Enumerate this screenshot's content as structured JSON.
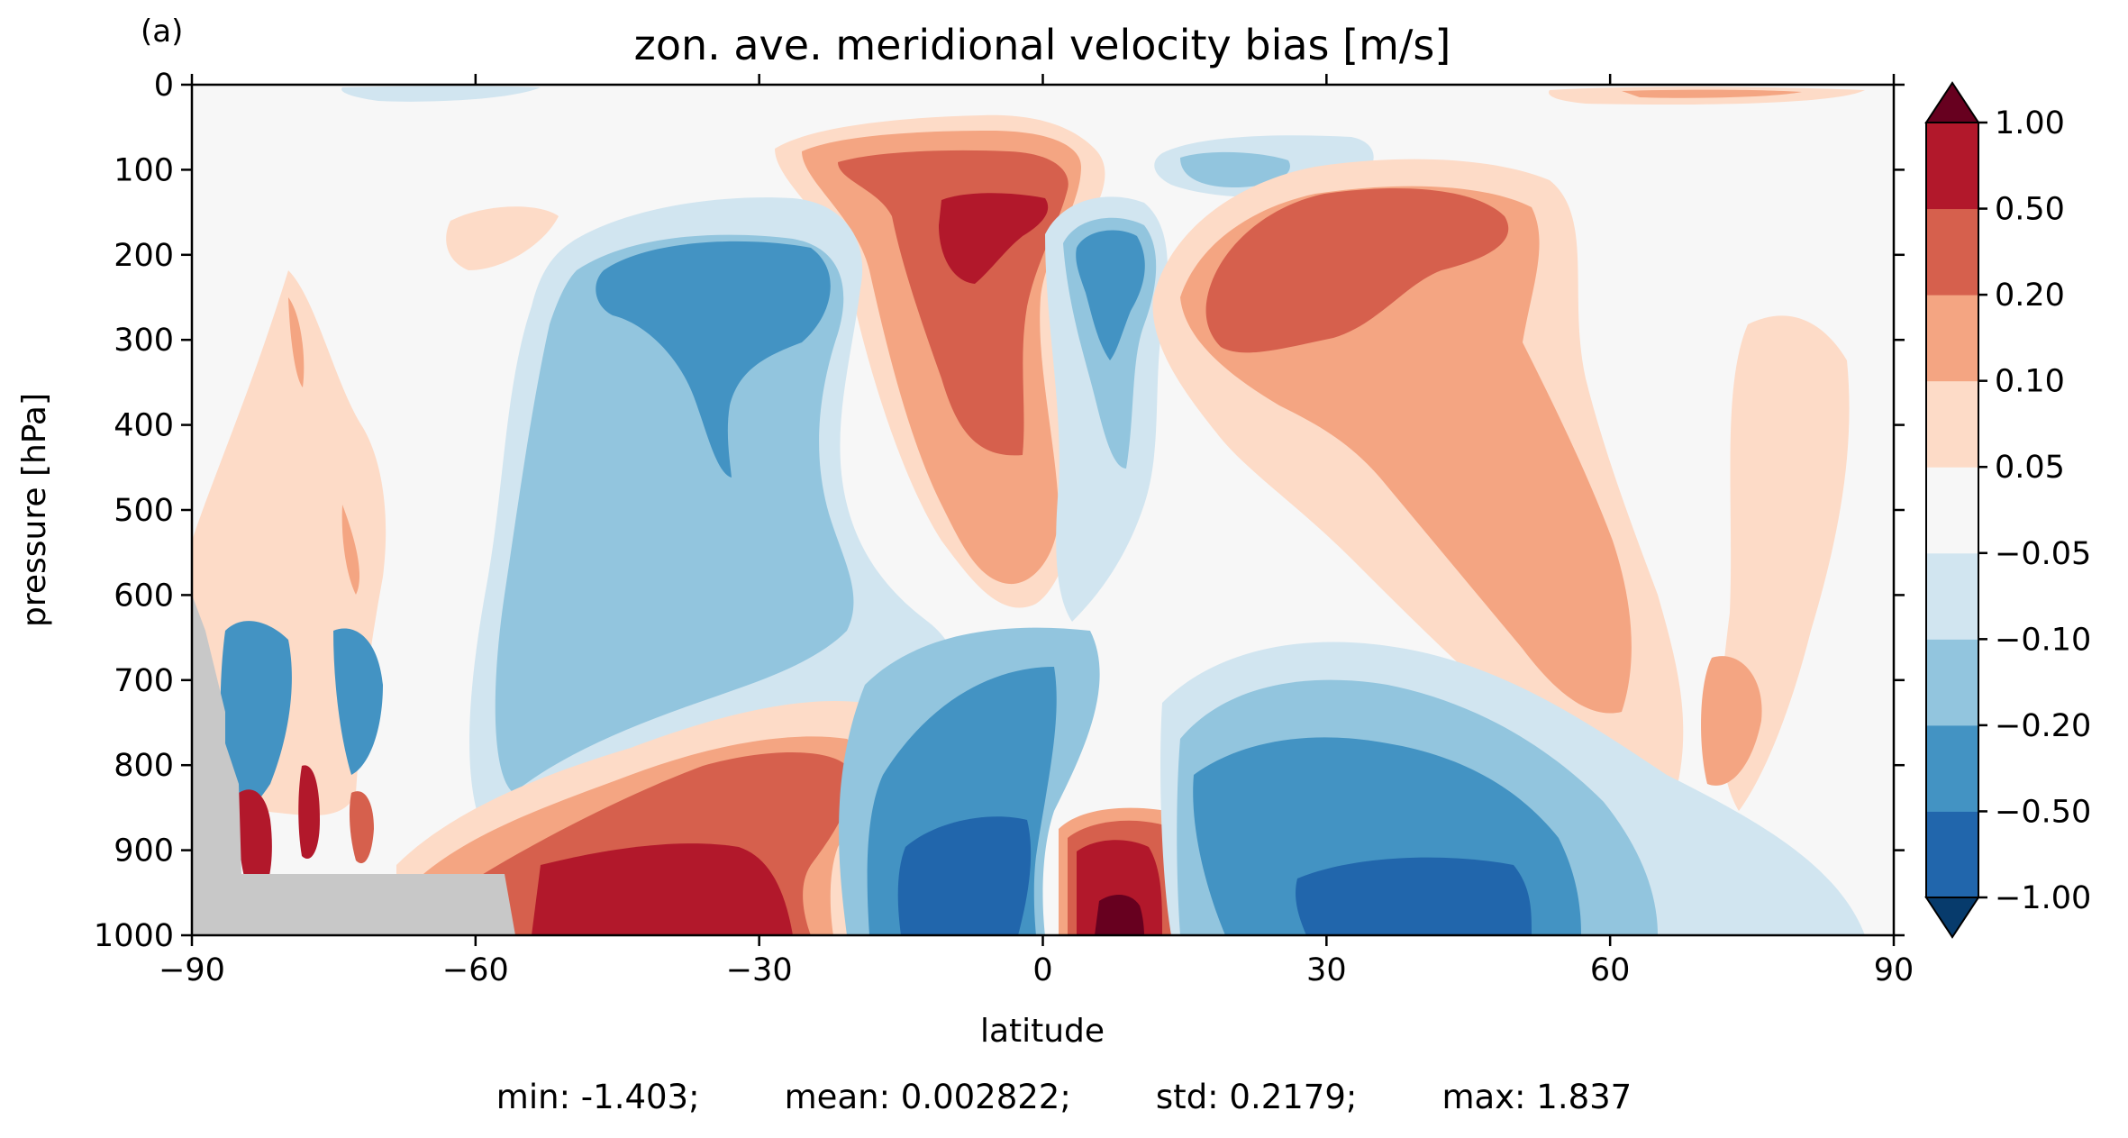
{
  "chart_data": {
    "type": "heatmap",
    "panel_label": "(a)",
    "title": "zon. ave. meridional velocity bias [m/s]",
    "xlabel": "latitude",
    "ylabel": "pressure [hPa]",
    "xlim": [
      -90,
      90
    ],
    "ylim": [
      1000,
      0
    ],
    "x_ticks": [
      -90,
      -60,
      -30,
      0,
      30,
      60,
      90
    ],
    "x_tick_labels": [
      "−90",
      "−60",
      "−30",
      "0",
      "30",
      "60",
      "90"
    ],
    "y_ticks": [
      0,
      100,
      200,
      300,
      400,
      500,
      600,
      700,
      800,
      900,
      1000
    ],
    "y_tick_labels": [
      "0",
      "100",
      "200",
      "300",
      "400",
      "500",
      "600",
      "700",
      "800",
      "900",
      "1000"
    ],
    "colorbar": {
      "levels": [
        -1.0,
        -0.5,
        -0.2,
        -0.1,
        -0.05,
        0.05,
        0.1,
        0.2,
        0.5,
        1.0
      ],
      "tick_labels": [
        "−1.00",
        "−0.50",
        "−0.20",
        "−0.10",
        "−0.05",
        "0.05",
        "0.10",
        "0.20",
        "0.50",
        "1.00"
      ],
      "colors": [
        "#073b6c",
        "#2166ac",
        "#4393c3",
        "#92c5de",
        "#d1e5f0",
        "#f7f7f7",
        "#fddbc7",
        "#f4a582",
        "#d6604d",
        "#b2182b",
        "#67001f"
      ],
      "extend": "both"
    },
    "missing_color": "#c8c8c8",
    "stats": {
      "min": "min: -1.403;",
      "mean": "mean: 0.002822;",
      "std": "std: 0.2179;",
      "max": "max: 1.837"
    },
    "features": [
      {
        "sign": "positive",
        "value": 0.3,
        "lat": [
          -20,
          0
        ],
        "p": [
          100,
          550
        ]
      },
      {
        "sign": "positive",
        "value": 0.6,
        "lat": [
          -11,
          -2
        ],
        "p": [
          140,
          230
        ]
      },
      {
        "sign": "negative",
        "value": -0.3,
        "lat": [
          -45,
          -22
        ],
        "p": [
          180,
          450
        ]
      },
      {
        "sign": "negative",
        "value": -0.1,
        "lat": [
          -57,
          -15
        ],
        "p": [
          180,
          840
        ]
      },
      {
        "sign": "negative",
        "value": -0.3,
        "lat": [
          4,
          10
        ],
        "p": [
          160,
          330
        ]
      },
      {
        "sign": "negative",
        "value": -0.1,
        "lat": [
          16,
          25
        ],
        "p": [
          80,
          140
        ]
      },
      {
        "sign": "positive",
        "value": 0.3,
        "lat": [
          17,
          48
        ],
        "p": [
          120,
          330
        ]
      },
      {
        "sign": "positive",
        "value": 0.1,
        "lat": [
          14,
          65
        ],
        "p": [
          120,
          760
        ]
      },
      {
        "sign": "positive",
        "value": 0.05,
        "lat": [
          55,
          88
        ],
        "p": [
          10,
          20
        ]
      },
      {
        "sign": "positive",
        "value": 0.6,
        "lat": [
          -53,
          -27
        ],
        "p": [
          880,
          1000
        ]
      },
      {
        "sign": "positive",
        "value": 0.3,
        "lat": [
          -55,
          -20
        ],
        "p": [
          780,
          1000
        ]
      },
      {
        "sign": "negative",
        "value": -0.6,
        "lat": [
          -15,
          -3
        ],
        "p": [
          860,
          1000
        ]
      },
      {
        "sign": "negative",
        "value": -0.3,
        "lat": [
          -18,
          0
        ],
        "p": [
          650,
          1000
        ]
      },
      {
        "sign": "positive",
        "value": 0.6,
        "lat": [
          4,
          12
        ],
        "p": [
          880,
          1000
        ]
      },
      {
        "sign": "positive",
        "value": 1.2,
        "lat": [
          6,
          10
        ],
        "p": [
          950,
          1000
        ]
      },
      {
        "sign": "negative",
        "value": -0.6,
        "lat": [
          30,
          52
        ],
        "p": [
          880,
          1000
        ]
      },
      {
        "sign": "negative",
        "value": -0.3,
        "lat": [
          14,
          55
        ],
        "p": [
          740,
          1000
        ]
      },
      {
        "sign": "mixed",
        "value": 0.6,
        "lat": [
          -88,
          -70
        ],
        "p": [
          600,
          930
        ]
      }
    ]
  }
}
